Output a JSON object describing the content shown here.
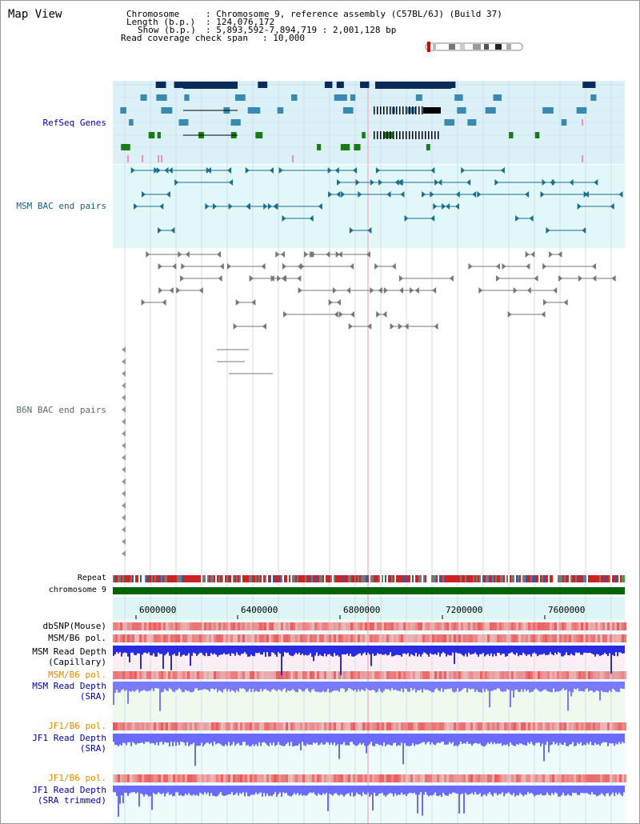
{
  "view": {
    "title": "Map View"
  },
  "header": {
    "chromosome_key": "Chromosome",
    "chromosome_val": ": Chromosome 9, reference assembly (C57BL/6J) (Build 37)",
    "length_key": "Length (b.p.)",
    "length_val": ": 124,076,172",
    "show_key": "Show (b.p.)",
    "show_val": ": 5,893,592-7,894,719 : 2,001,128 bp",
    "span_key": "Read coverage check span",
    "span_val": ": 10,000"
  },
  "tracks": {
    "refseq": "RefSeq Genes",
    "msm_bac": "MSM BAC end pairs",
    "b6n_bac": "B6N BAC end pairs",
    "repeat": "Repeat",
    "chromosome": "chromosome 9",
    "dbsnp": "dbSNP(Mouse)",
    "msm_pol": "MSM/B6 pol.",
    "msm_depth_cap_1": "MSM Read Depth",
    "msm_depth_cap_2": "(Capillary)",
    "msm_pol_sra": "MSM/B6 pol.",
    "msm_depth_sra_1": "MSM Read Depth",
    "msm_depth_sra_2": "(SRA)",
    "jf1_pol": "JF1/B6 pol.",
    "jf1_depth_1": "JF1 Read Depth",
    "jf1_depth_2": "(SRA)",
    "jf1_pol_t": "JF1/B6 pol.",
    "jf1_depth_t_1": "JF1 Read Depth",
    "jf1_depth_t_2": "(SRA trimmed)"
  },
  "axis": {
    "ticks": [
      "6000000",
      "6400000",
      "6800000",
      "7200000",
      "7600000"
    ]
  },
  "colors": {
    "refseq_bg": "#dcf0f8",
    "msm_bg": "#e2f7f7",
    "axis_bg": "#ddf5f5",
    "chrom_bar": "#006400",
    "gene_dark": "#0a2a5a",
    "gene_mid": "#3a8ab0",
    "gene_green": "#1a7a1a",
    "msm_line": "#1a6e8e",
    "b6n_line": "#777777",
    "label_blue": "#0000aa",
    "label_teal": "#1a5e7e",
    "label_orange": "#e08a00",
    "depth_blue": "#4a4aee"
  }
}
